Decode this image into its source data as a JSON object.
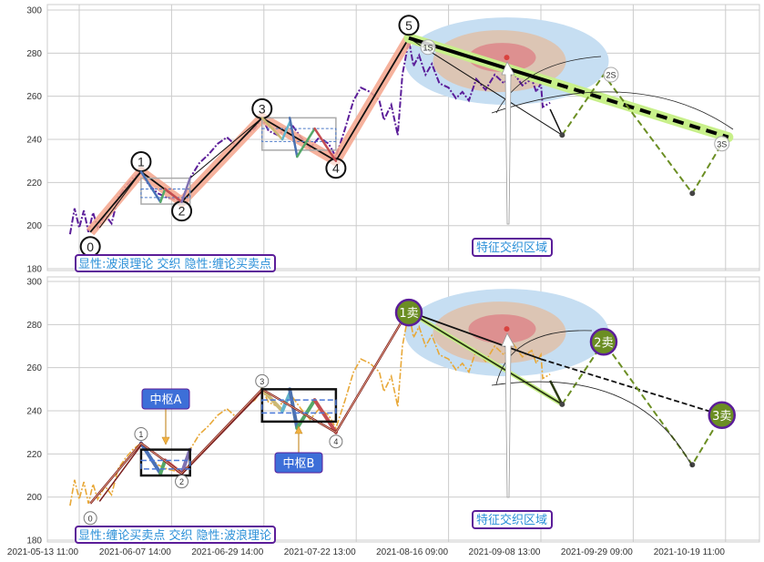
{
  "chart_data": [
    {
      "type": "line",
      "panel": "top",
      "title": "",
      "ylim": [
        180,
        300
      ],
      "yticks": [
        "180",
        "200",
        "220",
        "240",
        "260",
        "280",
        "300"
      ],
      "x_unit": "tick index (0 = first date tick)",
      "price_color": "#5b1d99",
      "price": [
        [
          -0.1,
          196
        ],
        [
          -0.05,
          208
        ],
        [
          0,
          199
        ],
        [
          0.05,
          207
        ],
        [
          0.1,
          197
        ],
        [
          0.15,
          206
        ],
        [
          0.2,
          199
        ],
        [
          0.28,
          205
        ],
        [
          0.35,
          201
        ],
        [
          0.42,
          213
        ],
        [
          0.5,
          218
        ],
        [
          0.58,
          222
        ],
        [
          0.67,
          225
        ],
        [
          0.75,
          219
        ],
        [
          0.85,
          215
        ],
        [
          0.95,
          213
        ],
        [
          1.05,
          212
        ],
        [
          1.11,
          211
        ],
        [
          1.2,
          222
        ],
        [
          1.3,
          229
        ],
        [
          1.4,
          233
        ],
        [
          1.5,
          238
        ],
        [
          1.6,
          241
        ],
        [
          1.7,
          237
        ],
        [
          1.8,
          242
        ],
        [
          1.9,
          245
        ],
        [
          1.98,
          250
        ],
        [
          2.05,
          244
        ],
        [
          2.15,
          242
        ],
        [
          2.3,
          247
        ],
        [
          2.4,
          241
        ],
        [
          2.5,
          236
        ],
        [
          2.6,
          241
        ],
        [
          2.7,
          238
        ],
        [
          2.78,
          232
        ],
        [
          2.88,
          245
        ],
        [
          2.97,
          258
        ],
        [
          3.05,
          264
        ],
        [
          3.15,
          262
        ],
        [
          3.25,
          258
        ],
        [
          3.3,
          249
        ],
        [
          3.38,
          256
        ],
        [
          3.45,
          242
        ],
        [
          3.5,
          270
        ],
        [
          3.57,
          286
        ],
        [
          3.62,
          274
        ],
        [
          3.68,
          279
        ],
        [
          3.75,
          270
        ],
        [
          3.82,
          275
        ],
        [
          3.9,
          266
        ],
        [
          4.0,
          264
        ],
        [
          4.08,
          259
        ],
        [
          4.15,
          262
        ],
        [
          4.22,
          258
        ],
        [
          4.3,
          268
        ],
        [
          4.4,
          263
        ],
        [
          4.5,
          270
        ],
        [
          4.6,
          266
        ],
        [
          4.7,
          271
        ],
        [
          4.8,
          265
        ],
        [
          4.9,
          268
        ],
        [
          4.95,
          262
        ],
        [
          5.0,
          266
        ],
        [
          5.02,
          255
        ],
        [
          5.1,
          257
        ]
      ],
      "waves": [
        {
          "label": "0",
          "x": 0.12,
          "y": 197
        },
        {
          "label": "1",
          "x": 0.67,
          "y": 225
        },
        {
          "label": "2",
          "x": 1.11,
          "y": 211
        },
        {
          "label": "3",
          "x": 1.98,
          "y": 250
        },
        {
          "label": "4",
          "x": 2.78,
          "y": 230
        },
        {
          "label": "5",
          "x": 3.57,
          "y": 287
        }
      ],
      "projection": [
        {
          "label": "1S",
          "x": 3.57,
          "y": 287
        },
        {
          "label": "",
          "x": 5.23,
          "y": 242
        },
        {
          "label": "2S",
          "x": 5.68,
          "y": 270
        },
        {
          "label": "",
          "x": 6.64,
          "y": 215
        },
        {
          "label": "3S",
          "x": 6.96,
          "y": 238
        }
      ],
      "trendline": {
        "from": [
          3.57,
          287
        ],
        "to": [
          7.03,
          241
        ]
      },
      "zhongshu": [
        {
          "x0": 0.67,
          "x1": 1.2,
          "y0": 210,
          "y1": 222,
          "inner": [
            213,
            217
          ]
        },
        {
          "x0": 1.98,
          "x1": 2.78,
          "y0": 235,
          "y1": 250,
          "inner": [
            239,
            245
          ]
        }
      ],
      "zone_center": {
        "x": 4.63,
        "y": 278
      },
      "annotations": {
        "legend_box": "显性:波浪理论 交织 隐性:缠论买卖点",
        "zone_label": "特征交织区域"
      }
    },
    {
      "type": "line",
      "panel": "bottom",
      "ylim": [
        180,
        300
      ],
      "yticks": [
        "180",
        "200",
        "220",
        "240",
        "260",
        "280",
        "300"
      ],
      "xticks": [
        "2021-05-13 11:00",
        "2021-06-07 14:00",
        "2021-06-29 14:00",
        "2021-07-22 13:00",
        "2021-08-16 09:00",
        "2021-09-08 13:00",
        "2021-09-29 09:00",
        "2021-10-19 11:00"
      ],
      "price_color": "#e8a838",
      "sell_points": [
        {
          "label": "1卖",
          "x": 3.57,
          "y": 286
        },
        {
          "label": "2卖",
          "x": 5.68,
          "y": 272
        },
        {
          "label": "3卖",
          "x": 6.96,
          "y": 238
        }
      ],
      "projection_lows": [
        {
          "x": 5.23,
          "y": 243
        },
        {
          "x": 6.64,
          "y": 215
        }
      ],
      "zhongshu_labels": [
        "中枢A",
        "中枢B"
      ],
      "annotations": {
        "legend_box": "显性:缠论买卖点 交织 隐性:波浪理论",
        "zone_label": "特征交织区域"
      }
    }
  ],
  "colors": {
    "wave_highlight": "#f4a58c",
    "sell_fill": "#6b8e23",
    "sell_border": "#5b1d99",
    "trend_glow": "#c8f08a",
    "label_btn": "#3d6fd8"
  }
}
